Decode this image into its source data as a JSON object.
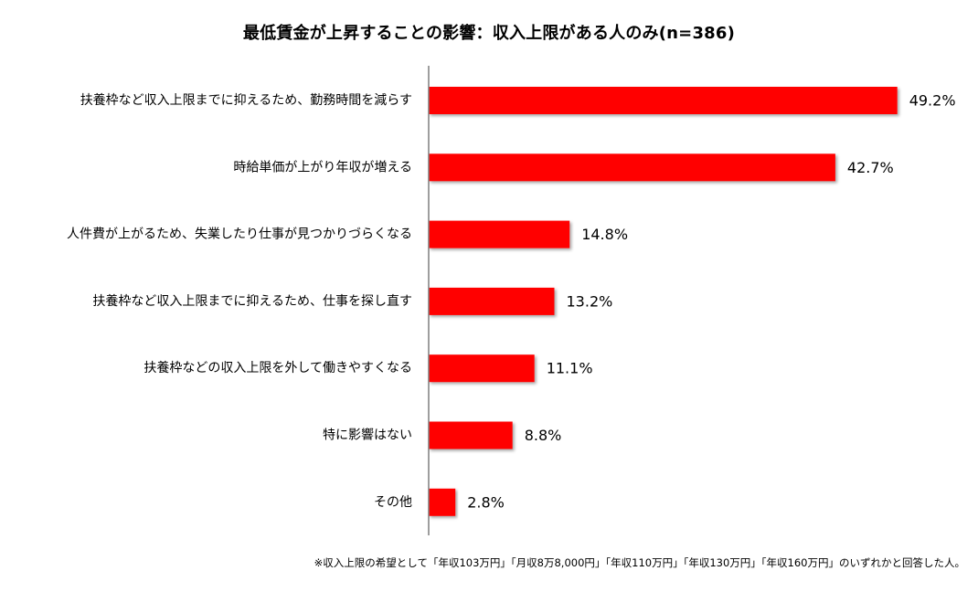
{
  "chart_data": {
    "type": "bar",
    "orientation": "horizontal",
    "title": "最低賃金が上昇することの影響：収入上限がある人のみ(n=386)",
    "categories": [
      "扶養枠など収入上限までに抑えるため、勤務時間を減らす",
      "時給単価が上がり年収が増える",
      "人件費が上がるため、失業したり仕事が見つかりづらくなる",
      "扶養枠など収入上限までに抑えるため、仕事を探し直す",
      "扶養枠などの収入上限を外して働きやすくなる",
      "特に影響はない",
      "その他"
    ],
    "values": [
      49.2,
      42.7,
      14.8,
      13.2,
      11.1,
      8.8,
      2.8
    ],
    "value_labels": [
      "49.2%",
      "42.7%",
      "14.8%",
      "13.2%",
      "11.1%",
      "8.8%",
      "2.8%"
    ],
    "xlim": [
      0,
      50
    ],
    "grid": false,
    "legend": "none",
    "bar_color": "#ff0000",
    "axis_color": "#7f7f7f",
    "footnote": "※収入上限の希望として「年収103万円」「月収8万8,000円」「年収110万円」「年収130万円」「年収160万円」のいずれかと回答した人。"
  }
}
